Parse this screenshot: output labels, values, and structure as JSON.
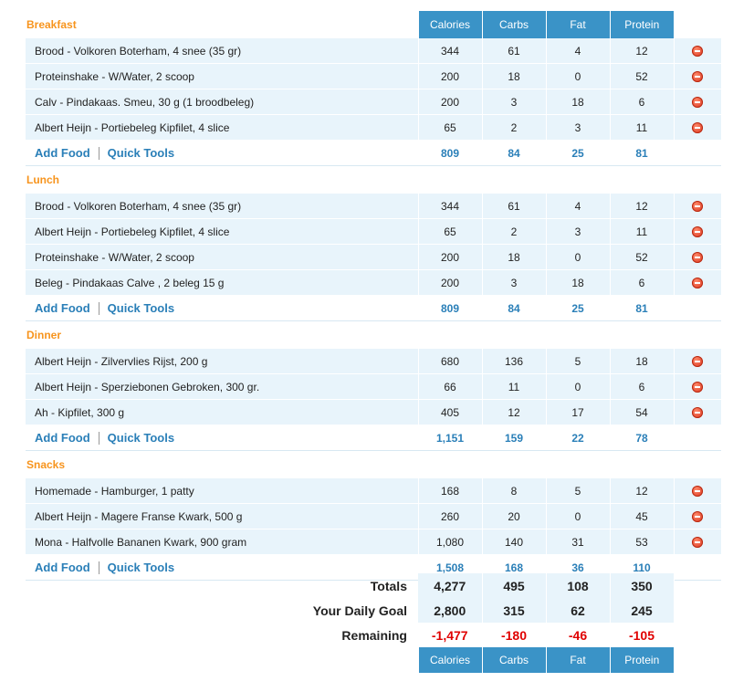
{
  "columns": [
    "Calories",
    "Carbs",
    "Fat",
    "Protein"
  ],
  "links": {
    "add_food": "Add Food",
    "quick_tools": "Quick Tools"
  },
  "meals": [
    {
      "title": "Breakfast",
      "items": [
        {
          "name": "Brood - Volkoren Boterham, 4 snee (35 gr)",
          "calories": "344",
          "carbs": "61",
          "fat": "4",
          "protein": "12"
        },
        {
          "name": "Proteinshake - W/Water, 2 scoop",
          "calories": "200",
          "carbs": "18",
          "fat": "0",
          "protein": "52"
        },
        {
          "name": "Calv - Pindakaas. Smeu, 30 g (1 broodbeleg)",
          "calories": "200",
          "carbs": "3",
          "fat": "18",
          "protein": "6"
        },
        {
          "name": "Albert Heijn - Portiebeleg Kipfilet, 4 slice",
          "calories": "65",
          "carbs": "2",
          "fat": "3",
          "protein": "11"
        }
      ],
      "totals": {
        "calories": "809",
        "carbs": "84",
        "fat": "25",
        "protein": "81"
      }
    },
    {
      "title": "Lunch",
      "items": [
        {
          "name": "Brood - Volkoren Boterham, 4 snee (35 gr)",
          "calories": "344",
          "carbs": "61",
          "fat": "4",
          "protein": "12"
        },
        {
          "name": "Albert Heijn - Portiebeleg Kipfilet, 4 slice",
          "calories": "65",
          "carbs": "2",
          "fat": "3",
          "protein": "11"
        },
        {
          "name": "Proteinshake - W/Water, 2 scoop",
          "calories": "200",
          "carbs": "18",
          "fat": "0",
          "protein": "52"
        },
        {
          "name": "Beleg - Pindakaas Calve , 2 beleg 15 g",
          "calories": "200",
          "carbs": "3",
          "fat": "18",
          "protein": "6"
        }
      ],
      "totals": {
        "calories": "809",
        "carbs": "84",
        "fat": "25",
        "protein": "81"
      }
    },
    {
      "title": "Dinner",
      "items": [
        {
          "name": "Albert Heijn - Zilvervlies Rijst, 200 g",
          "calories": "680",
          "carbs": "136",
          "fat": "5",
          "protein": "18"
        },
        {
          "name": "Albert Heijn - Sperziebonen Gebroken, 300 gr.",
          "calories": "66",
          "carbs": "11",
          "fat": "0",
          "protein": "6"
        },
        {
          "name": "Ah - Kipfilet, 300 g",
          "calories": "405",
          "carbs": "12",
          "fat": "17",
          "protein": "54"
        }
      ],
      "totals": {
        "calories": "1,151",
        "carbs": "159",
        "fat": "22",
        "protein": "78"
      }
    },
    {
      "title": "Snacks",
      "items": [
        {
          "name": "Homemade - Hamburger, 1 patty",
          "calories": "168",
          "carbs": "8",
          "fat": "5",
          "protein": "12"
        },
        {
          "name": "Albert Heijn - Magere Franse Kwark, 500 g",
          "calories": "260",
          "carbs": "20",
          "fat": "0",
          "protein": "45"
        },
        {
          "name": "Mona - Halfvolle Bananen Kwark, 900 gram",
          "calories": "1,080",
          "carbs": "140",
          "fat": "31",
          "protein": "53"
        }
      ],
      "totals": {
        "calories": "1,508",
        "carbs": "168",
        "fat": "36",
        "protein": "110"
      }
    }
  ],
  "summary": {
    "totals": {
      "label": "Totals",
      "calories": "4,277",
      "carbs": "495",
      "fat": "108",
      "protein": "350"
    },
    "goal": {
      "label": "Your Daily Goal",
      "calories": "2,800",
      "carbs": "315",
      "fat": "62",
      "protein": "245"
    },
    "remaining": {
      "label": "Remaining",
      "calories": "-1,477",
      "carbs": "-180",
      "fat": "-46",
      "protein": "-105"
    }
  },
  "colors": {
    "accent": "#f7941d",
    "header": "#3a93c7",
    "link": "#2a7fb8",
    "row": "#e8f4fb",
    "negative": "#e00000"
  },
  "icons": {
    "remove": "remove-icon"
  }
}
